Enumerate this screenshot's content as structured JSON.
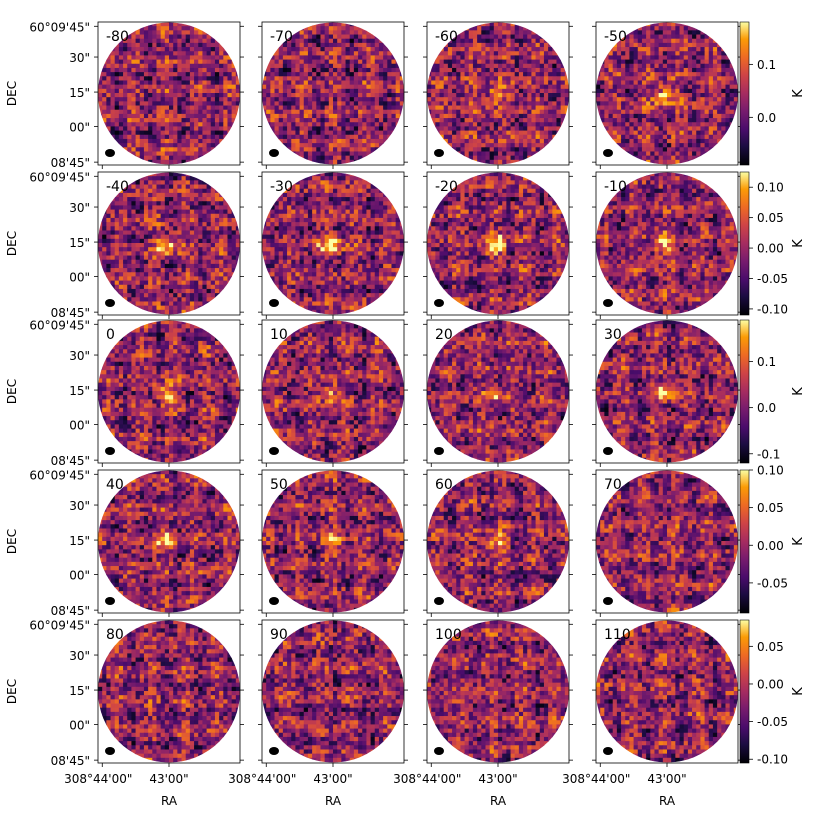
{
  "chart_data": {
    "type": "heatmap",
    "layout": "channel-map grid, 5 rows x 4 columns",
    "xlabel": "RA",
    "ylabel": "DEC",
    "x_tick_labels": [
      "308°44'00\"",
      "43'00\""
    ],
    "y_tick_labels": [
      "60°09'45\"",
      "30\"",
      "15\"",
      "00\"",
      "08'45\""
    ],
    "colorbar_label": "K",
    "colormap": "inferno",
    "beam_marker": "ellipse",
    "panels": [
      {
        "label": "-80",
        "peak": 0
      },
      {
        "label": "-70",
        "peak": 0
      },
      {
        "label": "-60",
        "peak": 0.7
      },
      {
        "label": "-50",
        "peak": 0.9
      },
      {
        "label": "-40",
        "peak": 1
      },
      {
        "label": "-30",
        "peak": 1
      },
      {
        "label": "-20",
        "peak": 1
      },
      {
        "label": "-10",
        "peak": 0.8
      },
      {
        "label": "0",
        "peak": 0.7
      },
      {
        "label": "10",
        "peak": 0.7
      },
      {
        "label": "20",
        "peak": 0.7
      },
      {
        "label": "30",
        "peak": 0.7
      },
      {
        "label": "40",
        "peak": 0.8
      },
      {
        "label": "50",
        "peak": 0.6
      },
      {
        "label": "60",
        "peak": 0.7
      },
      {
        "label": "70",
        "peak": 0.3
      },
      {
        "label": "80",
        "peak": 0
      },
      {
        "label": "90",
        "peak": 0
      },
      {
        "label": "100",
        "peak": 0
      },
      {
        "label": "110",
        "peak": 0
      }
    ],
    "colorbars": [
      {
        "ticks": [
          "0.1",
          "0.0"
        ],
        "tick_values": [
          0.1,
          0.0
        ],
        "range": [
          -0.09,
          0.18
        ]
      },
      {
        "ticks": [
          "0.10",
          "0.05",
          "0.00",
          "-0.05",
          "-0.10"
        ],
        "tick_values": [
          0.1,
          0.05,
          0.0,
          -0.05,
          -0.1
        ],
        "range": [
          -0.11,
          0.125
        ]
      },
      {
        "ticks": [
          "0.1",
          "0.0",
          "-0.1"
        ],
        "tick_values": [
          0.1,
          0.0,
          -0.1
        ],
        "range": [
          -0.12,
          0.19
        ]
      },
      {
        "ticks": [
          "0.10",
          "0.05",
          "0.00",
          "-0.05"
        ],
        "tick_values": [
          0.1,
          0.05,
          0.0,
          -0.05
        ],
        "range": [
          -0.09,
          0.1
        ]
      },
      {
        "ticks": [
          "0.05",
          "0.00",
          "-0.05",
          "-0.10"
        ],
        "tick_values": [
          0.05,
          0.0,
          -0.05,
          -0.1
        ],
        "range": [
          -0.105,
          0.085
        ]
      }
    ]
  }
}
